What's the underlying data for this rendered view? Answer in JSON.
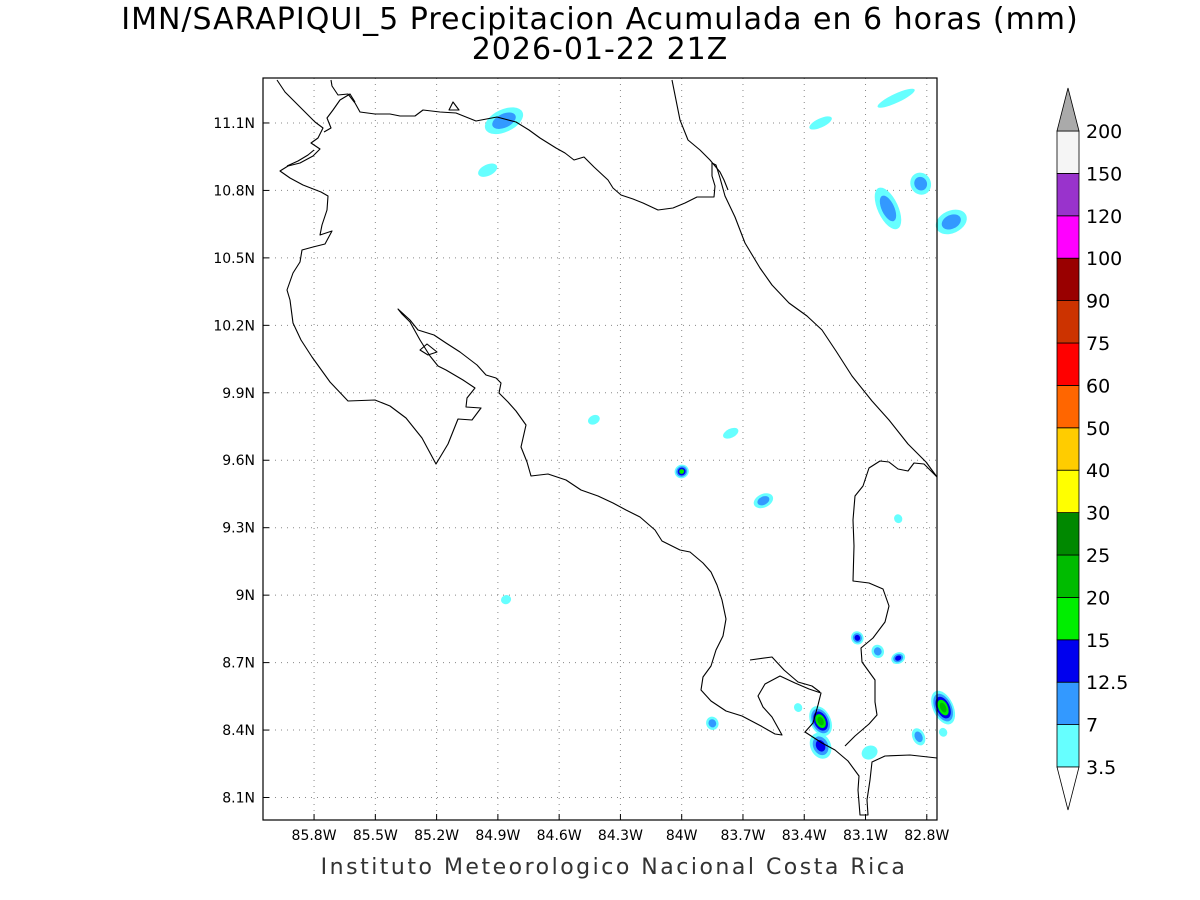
{
  "title": {
    "line1": "IMN/SARAPIQUI_5 Precipitacion Acumulada en 6 horas (mm)",
    "line2": "2026-01-22 21Z"
  },
  "footer": "Instituto Meteorologico Nacional Costa Rica",
  "map": {
    "lon_range": [
      -86.05,
      -82.75
    ],
    "lat_range": [
      8.0,
      11.3
    ],
    "lon_ticks": [
      {
        "value": -85.8,
        "label": "85.8W"
      },
      {
        "value": -85.5,
        "label": "85.5W"
      },
      {
        "value": -85.2,
        "label": "85.2W"
      },
      {
        "value": -84.9,
        "label": "84.9W"
      },
      {
        "value": -84.6,
        "label": "84.6W"
      },
      {
        "value": -84.3,
        "label": "84.3W"
      },
      {
        "value": -84.0,
        "label": "84W"
      },
      {
        "value": -83.7,
        "label": "83.7W"
      },
      {
        "value": -83.4,
        "label": "83.4W"
      },
      {
        "value": -83.1,
        "label": "83.1W"
      },
      {
        "value": -82.8,
        "label": "82.8W"
      }
    ],
    "lat_ticks": [
      {
        "value": 11.1,
        "label": "11.1N"
      },
      {
        "value": 10.8,
        "label": "10.8N"
      },
      {
        "value": 10.5,
        "label": "10.5N"
      },
      {
        "value": 10.2,
        "label": "10.2N"
      },
      {
        "value": 9.9,
        "label": "9.9N"
      },
      {
        "value": 9.6,
        "label": "9.6N"
      },
      {
        "value": 9.3,
        "label": "9.3N"
      },
      {
        "value": 9.0,
        "label": "9N"
      },
      {
        "value": 8.7,
        "label": "8.7N"
      },
      {
        "value": 8.4,
        "label": "8.4N"
      },
      {
        "value": 8.1,
        "label": "8.1N"
      }
    ],
    "grid": true
  },
  "legend": {
    "bottom_label": "3.5",
    "bins": [
      {
        "label": "7",
        "color": "#66ffff"
      },
      {
        "label": "12.5",
        "color": "#3399ff"
      },
      {
        "label": "15",
        "color": "#0000ee"
      },
      {
        "label": "20",
        "color": "#00ee00"
      },
      {
        "label": "25",
        "color": "#00bb00"
      },
      {
        "label": "30",
        "color": "#008800"
      },
      {
        "label": "40",
        "color": "#ffff00"
      },
      {
        "label": "50",
        "color": "#ffcc00"
      },
      {
        "label": "60",
        "color": "#ff6600"
      },
      {
        "label": "75",
        "color": "#ff0000"
      },
      {
        "label": "90",
        "color": "#cc3300"
      },
      {
        "label": "100",
        "color": "#990000"
      },
      {
        "label": "120",
        "color": "#ff00ff"
      },
      {
        "label": "150",
        "color": "#9933cc"
      },
      {
        "label": "200",
        "color": "#f5f5f5"
      }
    ],
    "over_color": "#aaaaaa",
    "under_color": "#ffffff"
  },
  "precip_cells": [
    {
      "lon": -84.87,
      "lat": 11.11,
      "rx": 0.1,
      "ry": 0.05,
      "level": 2
    },
    {
      "lon": -84.95,
      "lat": 10.89,
      "rx": 0.05,
      "ry": 0.025,
      "level": 1
    },
    {
      "lon": -83.32,
      "lat": 11.1,
      "rx": 0.06,
      "ry": 0.02,
      "level": 1
    },
    {
      "lon": -82.95,
      "lat": 11.21,
      "rx": 0.1,
      "ry": 0.02,
      "level": 1
    },
    {
      "lon": -82.99,
      "lat": 10.72,
      "rx": 0.05,
      "ry": 0.1,
      "level": 2
    },
    {
      "lon": -82.83,
      "lat": 10.83,
      "rx": 0.05,
      "ry": 0.05,
      "level": 2
    },
    {
      "lon": -82.68,
      "lat": 10.66,
      "rx": 0.08,
      "ry": 0.05,
      "level": 2
    },
    {
      "lon": -84.43,
      "lat": 9.78,
      "rx": 0.03,
      "ry": 0.02,
      "level": 1
    },
    {
      "lon": -84.0,
      "lat": 9.55,
      "rx": 0.035,
      "ry": 0.03,
      "level": 4
    },
    {
      "lon": -83.76,
      "lat": 9.72,
      "rx": 0.04,
      "ry": 0.02,
      "level": 1
    },
    {
      "lon": -83.6,
      "lat": 9.42,
      "rx": 0.05,
      "ry": 0.03,
      "level": 2
    },
    {
      "lon": -82.94,
      "lat": 9.34,
      "rx": 0.02,
      "ry": 0.02,
      "level": 1
    },
    {
      "lon": -84.86,
      "lat": 8.98,
      "rx": 0.025,
      "ry": 0.02,
      "level": 1
    },
    {
      "lon": -83.85,
      "lat": 8.43,
      "rx": 0.03,
      "ry": 0.03,
      "level": 2
    },
    {
      "lon": -83.32,
      "lat": 8.44,
      "rx": 0.05,
      "ry": 0.07,
      "level": 5
    },
    {
      "lon": -83.32,
      "lat": 8.33,
      "rx": 0.05,
      "ry": 0.06,
      "level": 3
    },
    {
      "lon": -83.43,
      "lat": 8.5,
      "rx": 0.02,
      "ry": 0.02,
      "level": 1
    },
    {
      "lon": -83.08,
      "lat": 8.3,
      "rx": 0.04,
      "ry": 0.03,
      "level": 1
    },
    {
      "lon": -83.14,
      "lat": 8.81,
      "rx": 0.03,
      "ry": 0.03,
      "level": 3
    },
    {
      "lon": -83.04,
      "lat": 8.75,
      "rx": 0.03,
      "ry": 0.03,
      "level": 2
    },
    {
      "lon": -82.94,
      "lat": 8.72,
      "rx": 0.035,
      "ry": 0.025,
      "level": 3
    },
    {
      "lon": -82.72,
      "lat": 8.5,
      "rx": 0.05,
      "ry": 0.08,
      "level": 5
    },
    {
      "lon": -82.84,
      "lat": 8.37,
      "rx": 0.03,
      "ry": 0.04,
      "level": 2
    },
    {
      "lon": -82.72,
      "lat": 8.39,
      "rx": 0.02,
      "ry": 0.02,
      "level": 1
    }
  ]
}
